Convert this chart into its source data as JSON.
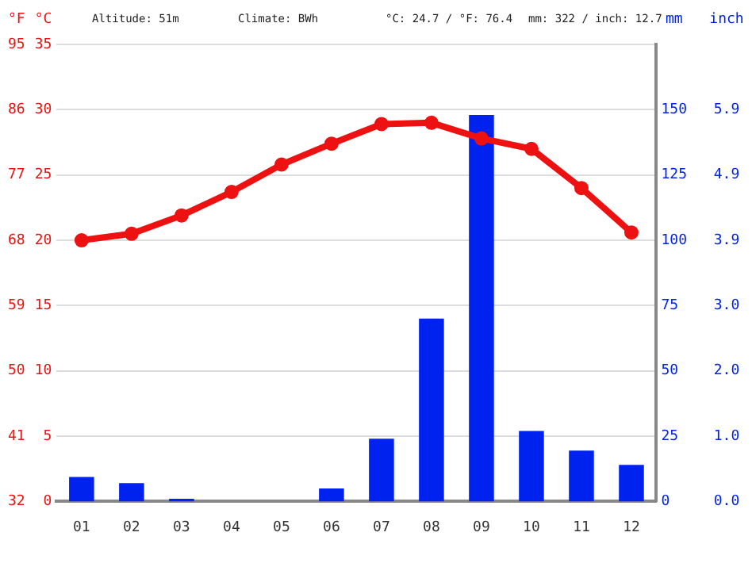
{
  "chart_data": {
    "type": "bar",
    "categories": [
      "01",
      "02",
      "03",
      "04",
      "05",
      "06",
      "07",
      "08",
      "09",
      "10",
      "11",
      "12"
    ],
    "series": [
      {
        "axis": "y2",
        "color": "#0022ee",
        "values": [
          9.4,
          7,
          1,
          0,
          0,
          5,
          24,
          70,
          148,
          27,
          19.5,
          14
        ]
      },
      {
        "type": "line",
        "axis": "y",
        "color": "#ee1111",
        "marker": "circle",
        "values": [
          20.0,
          20.5,
          21.9,
          23.7,
          25.8,
          27.4,
          28.9,
          29.0,
          27.8,
          27.0,
          24.0,
          20.6
        ]
      }
    ],
    "ylabel": "°C",
    "ylim": [
      0,
      35
    ],
    "yticks": [
      0,
      5,
      10,
      15,
      20,
      25,
      30,
      35
    ],
    "y3label": "°F",
    "y3lim": [
      32,
      95
    ],
    "y3ticks": [
      32,
      41,
      50,
      59,
      68,
      77,
      86,
      95
    ],
    "y2label": "mm",
    "y2lim": [
      0,
      175
    ],
    "y2ticks": [
      0,
      25,
      50,
      75,
      100,
      125,
      150
    ],
    "annotations": [
      "Altitude: 51m",
      "Climate: BWh",
      "°C: 24.7 / °F: 76.4",
      "mm: 322 / inch: 12.7",
      "inch",
      "0.0",
      "1.0",
      "2.0",
      "3.0",
      "3.9",
      "4.9",
      "5.9"
    ],
    "grid": "y",
    "legend": false
  }
}
